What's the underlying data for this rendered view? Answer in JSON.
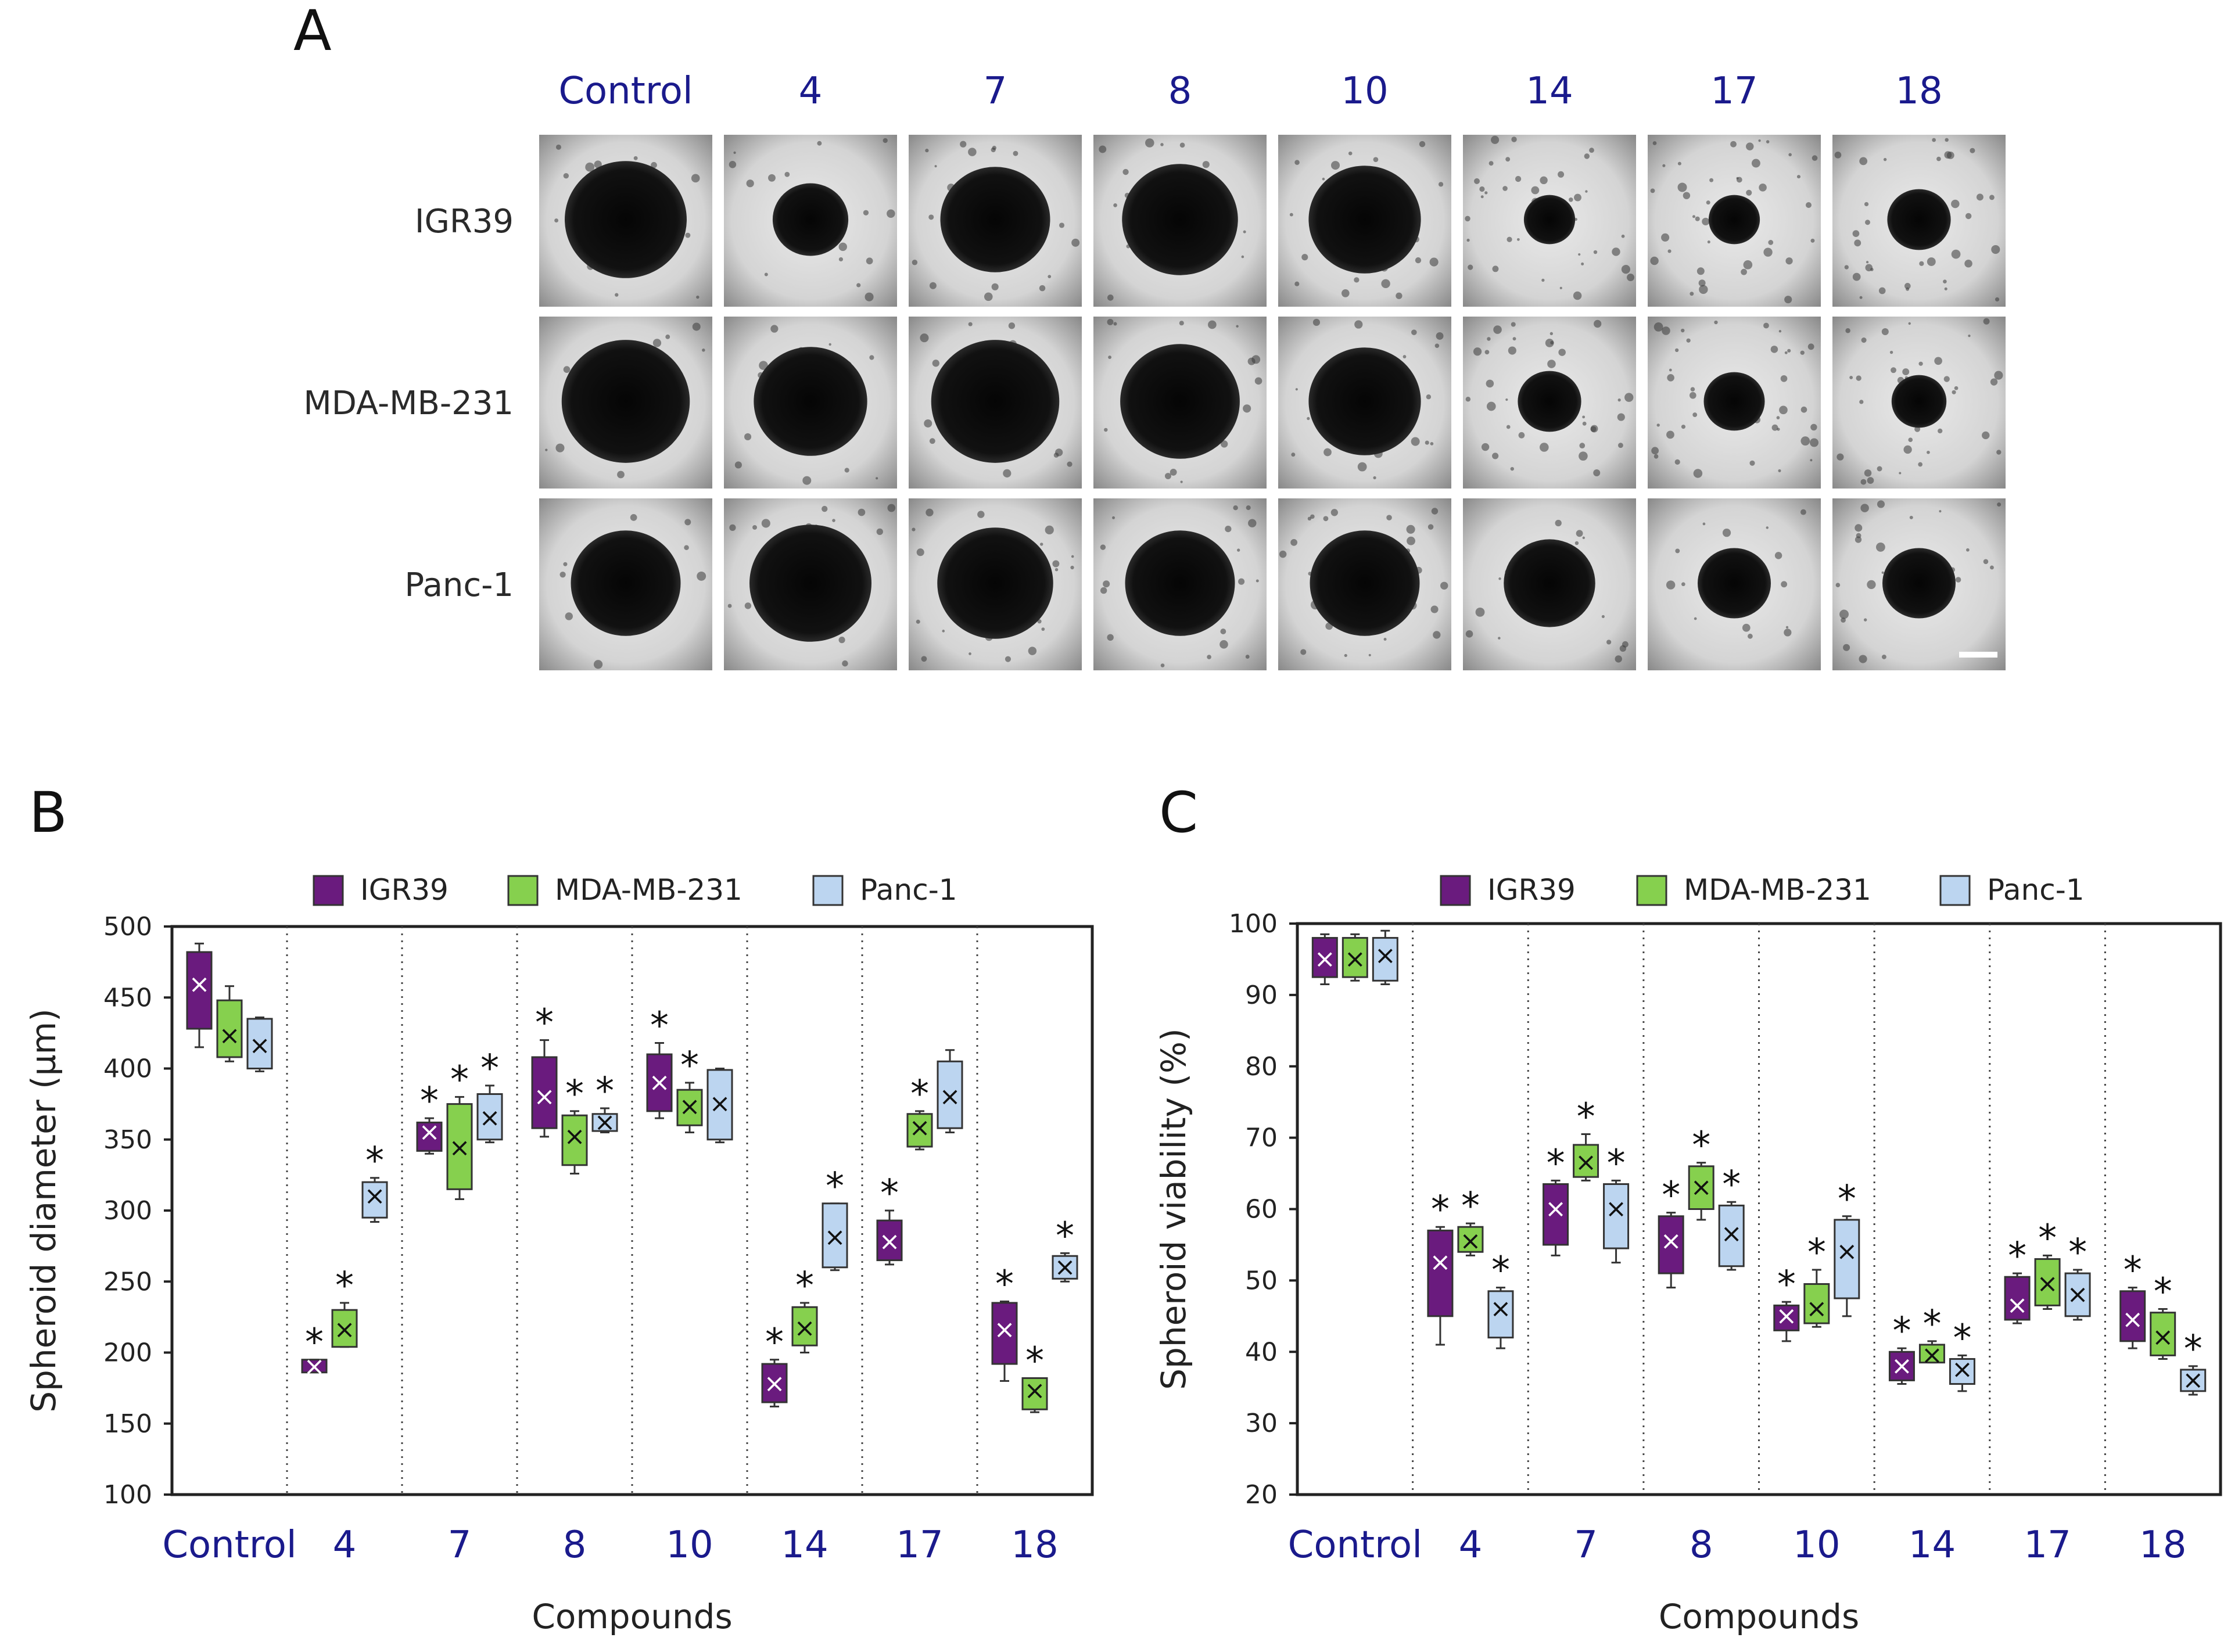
{
  "panel_a": {
    "letter": "A",
    "columns": [
      "Control",
      "4",
      "7",
      "8",
      "10",
      "14",
      "17",
      "18"
    ],
    "rows": [
      "IGR39",
      "MDA-MB-231",
      "Panc-1"
    ],
    "spheroid_sizes": [
      [
        1.0,
        0.62,
        0.9,
        0.95,
        0.92,
        0.42,
        0.42,
        0.52
      ],
      [
        1.05,
        0.93,
        1.05,
        0.98,
        0.92,
        0.52,
        0.5,
        0.45
      ],
      [
        0.9,
        1.0,
        0.95,
        0.9,
        0.9,
        0.75,
        0.6,
        0.6
      ]
    ]
  },
  "colors": {
    "IGR39": "#6a1b7e",
    "MDA-MB-231": "#86d04e",
    "Panc-1": "#bcd5f0"
  },
  "chart_data": [
    {
      "type": "box",
      "panel": "B",
      "title": "",
      "xlabel": "Compounds",
      "ylabel": "Spheroid diameter (µm)",
      "ylim": [
        100,
        500
      ],
      "yticks": [
        100,
        150,
        200,
        250,
        300,
        350,
        400,
        450,
        500
      ],
      "categories": [
        "Control",
        "4",
        "7",
        "8",
        "10",
        "14",
        "17",
        "18"
      ],
      "legend": [
        "IGR39",
        "MDA-MB-231",
        "Panc-1"
      ],
      "series": [
        {
          "name": "IGR39",
          "boxes": [
            {
              "min": 415,
              "q1": 428,
              "q3": 482,
              "max": 488,
              "mean": 459,
              "sig": false
            },
            {
              "min": 186,
              "q1": 186,
              "q3": 195,
              "max": 195,
              "mean": 190,
              "sig": true
            },
            {
              "min": 340,
              "q1": 342,
              "q3": 362,
              "max": 365,
              "mean": 355,
              "sig": true
            },
            {
              "min": 352,
              "q1": 358,
              "q3": 408,
              "max": 420,
              "mean": 380,
              "sig": true
            },
            {
              "min": 365,
              "q1": 370,
              "q3": 410,
              "max": 418,
              "mean": 390,
              "sig": true
            },
            {
              "min": 162,
              "q1": 165,
              "q3": 192,
              "max": 195,
              "mean": 178,
              "sig": true
            },
            {
              "min": 262,
              "q1": 265,
              "q3": 293,
              "max": 300,
              "mean": 278,
              "sig": true
            },
            {
              "min": 180,
              "q1": 192,
              "q3": 235,
              "max": 236,
              "mean": 216,
              "sig": true
            }
          ]
        },
        {
          "name": "MDA-MB-231",
          "boxes": [
            {
              "min": 405,
              "q1": 408,
              "q3": 448,
              "max": 458,
              "mean": 423,
              "sig": false
            },
            {
              "min": 204,
              "q1": 204,
              "q3": 230,
              "max": 235,
              "mean": 216,
              "sig": true
            },
            {
              "min": 308,
              "q1": 315,
              "q3": 375,
              "max": 380,
              "mean": 344,
              "sig": true
            },
            {
              "min": 326,
              "q1": 332,
              "q3": 367,
              "max": 370,
              "mean": 352,
              "sig": true
            },
            {
              "min": 355,
              "q1": 360,
              "q3": 385,
              "max": 390,
              "mean": 373,
              "sig": true
            },
            {
              "min": 200,
              "q1": 205,
              "q3": 232,
              "max": 235,
              "mean": 217,
              "sig": true
            },
            {
              "min": 343,
              "q1": 345,
              "q3": 368,
              "max": 370,
              "mean": 358,
              "sig": true
            },
            {
              "min": 158,
              "q1": 160,
              "q3": 182,
              "max": 182,
              "mean": 173,
              "sig": true
            }
          ]
        },
        {
          "name": "Panc-1",
          "boxes": [
            {
              "min": 398,
              "q1": 400,
              "q3": 435,
              "max": 436,
              "mean": 416,
              "sig": false
            },
            {
              "min": 292,
              "q1": 295,
              "q3": 320,
              "max": 323,
              "mean": 310,
              "sig": true
            },
            {
              "min": 348,
              "q1": 350,
              "q3": 382,
              "max": 388,
              "mean": 365,
              "sig": true
            },
            {
              "min": 355,
              "q1": 356,
              "q3": 368,
              "max": 372,
              "mean": 362,
              "sig": true
            },
            {
              "min": 348,
              "q1": 350,
              "q3": 399,
              "max": 400,
              "mean": 375,
              "sig": false
            },
            {
              "min": 258,
              "q1": 260,
              "q3": 305,
              "max": 305,
              "mean": 281,
              "sig": true
            },
            {
              "min": 355,
              "q1": 358,
              "q3": 405,
              "max": 413,
              "mean": 380,
              "sig": false
            },
            {
              "min": 250,
              "q1": 252,
              "q3": 268,
              "max": 270,
              "mean": 260,
              "sig": true
            }
          ]
        }
      ]
    },
    {
      "type": "box",
      "panel": "C",
      "title": "",
      "xlabel": "Compounds",
      "ylabel": "Spheroid viability (%)",
      "ylim": [
        20,
        100
      ],
      "yticks": [
        20,
        30,
        40,
        50,
        60,
        70,
        80,
        90,
        100
      ],
      "categories": [
        "Control",
        "4",
        "7",
        "8",
        "10",
        "14",
        "17",
        "18"
      ],
      "legend": [
        "IGR39",
        "MDA-MB-231",
        "Panc-1"
      ],
      "series": [
        {
          "name": "IGR39",
          "boxes": [
            {
              "min": 91.5,
              "q1": 92.5,
              "q3": 98,
              "max": 98.5,
              "mean": 95,
              "sig": false
            },
            {
              "min": 41,
              "q1": 45,
              "q3": 57,
              "max": 57.5,
              "mean": 52.5,
              "sig": true
            },
            {
              "min": 53.5,
              "q1": 55,
              "q3": 63.5,
              "max": 64,
              "mean": 60,
              "sig": true
            },
            {
              "min": 49,
              "q1": 51,
              "q3": 59,
              "max": 59.5,
              "mean": 55.5,
              "sig": true
            },
            {
              "min": 41.5,
              "q1": 43,
              "q3": 46.5,
              "max": 47,
              "mean": 45,
              "sig": true
            },
            {
              "min": 35.5,
              "q1": 36,
              "q3": 40,
              "max": 40.5,
              "mean": 38,
              "sig": true
            },
            {
              "min": 44,
              "q1": 44.5,
              "q3": 50.5,
              "max": 51,
              "mean": 46.5,
              "sig": true
            },
            {
              "min": 40.5,
              "q1": 41.5,
              "q3": 48.5,
              "max": 49,
              "mean": 44.5,
              "sig": true
            }
          ]
        },
        {
          "name": "MDA-MB-231",
          "boxes": [
            {
              "min": 92,
              "q1": 92.5,
              "q3": 98,
              "max": 98.5,
              "mean": 95,
              "sig": false
            },
            {
              "min": 53.5,
              "q1": 54,
              "q3": 57.5,
              "max": 58,
              "mean": 55.5,
              "sig": true
            },
            {
              "min": 64,
              "q1": 64.5,
              "q3": 69,
              "max": 70.5,
              "mean": 66.5,
              "sig": true
            },
            {
              "min": 58.5,
              "q1": 60,
              "q3": 66,
              "max": 66.5,
              "mean": 63,
              "sig": true
            },
            {
              "min": 43.5,
              "q1": 44,
              "q3": 49.5,
              "max": 51.5,
              "mean": 46,
              "sig": true
            },
            {
              "min": 38.5,
              "q1": 38.5,
              "q3": 41,
              "max": 41.5,
              "mean": 39.5,
              "sig": true
            },
            {
              "min": 46,
              "q1": 46.5,
              "q3": 53,
              "max": 53.5,
              "mean": 49.5,
              "sig": true
            },
            {
              "min": 39,
              "q1": 39.5,
              "q3": 45.5,
              "max": 46,
              "mean": 42,
              "sig": true
            }
          ]
        },
        {
          "name": "Panc-1",
          "boxes": [
            {
              "min": 91.5,
              "q1": 92,
              "q3": 98,
              "max": 99,
              "mean": 95.5,
              "sig": false
            },
            {
              "min": 40.5,
              "q1": 42,
              "q3": 48.5,
              "max": 49,
              "mean": 46,
              "sig": true
            },
            {
              "min": 52.5,
              "q1": 54.5,
              "q3": 63.5,
              "max": 64,
              "mean": 60,
              "sig": true
            },
            {
              "min": 51.5,
              "q1": 52,
              "q3": 60.5,
              "max": 61,
              "mean": 56.5,
              "sig": true
            },
            {
              "min": 45,
              "q1": 47.5,
              "q3": 58.5,
              "max": 59,
              "mean": 54,
              "sig": true
            },
            {
              "min": 34.5,
              "q1": 35.5,
              "q3": 39,
              "max": 39.5,
              "mean": 37.5,
              "sig": true
            },
            {
              "min": 44.5,
              "q1": 45,
              "q3": 51,
              "max": 51.5,
              "mean": 48,
              "sig": true
            },
            {
              "min": 34,
              "q1": 34.5,
              "q3": 37.5,
              "max": 38,
              "mean": 36,
              "sig": true
            }
          ]
        }
      ]
    }
  ],
  "panel_b": {
    "letter": "B"
  },
  "panel_c": {
    "letter": "C"
  },
  "significance_marker": "*",
  "mean_marker": "×"
}
